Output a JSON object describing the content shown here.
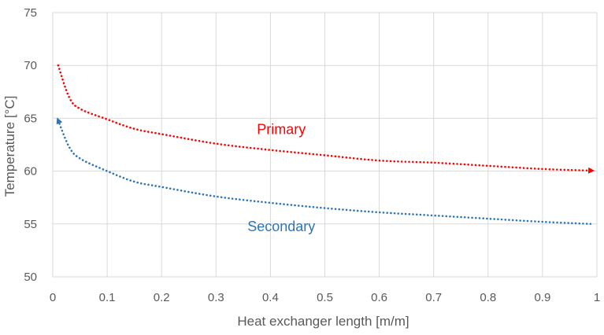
{
  "chart_data": {
    "type": "line",
    "title": "",
    "xlabel": "Heat exchanger length [m/m]",
    "ylabel": "Temperature [°C]",
    "xlim": [
      0,
      1
    ],
    "ylim": [
      50,
      75
    ],
    "grid": true,
    "x_ticks": [
      0,
      0.1,
      0.2,
      0.3,
      0.4,
      0.5,
      0.6,
      0.7,
      0.8,
      0.9,
      1
    ],
    "x_tick_labels": [
      "0",
      "0.1",
      "0.2",
      "0.3",
      "0.4",
      "0.5",
      "0.6",
      "0.7",
      "0.8",
      "0.9",
      "1"
    ],
    "y_ticks": [
      50,
      55,
      60,
      65,
      70,
      75
    ],
    "y_tick_labels": [
      "50",
      "55",
      "60",
      "65",
      "70",
      "75"
    ],
    "series": [
      {
        "name": "Primary",
        "color": "#ff0000",
        "style": "dotted",
        "arrow": "end",
        "x": [
          0.01,
          0.03,
          0.05,
          0.1,
          0.15,
          0.2,
          0.3,
          0.4,
          0.5,
          0.6,
          0.7,
          0.8,
          0.9,
          0.99
        ],
        "y": [
          70,
          67.0,
          65.9,
          64.9,
          64.0,
          63.5,
          62.6,
          62.0,
          61.5,
          61.0,
          60.8,
          60.5,
          60.2,
          60.05
        ]
      },
      {
        "name": "Secondary",
        "color": "#2e75b6",
        "style": "dotted",
        "arrow": "start",
        "x": [
          0.01,
          0.03,
          0.05,
          0.1,
          0.15,
          0.2,
          0.3,
          0.4,
          0.5,
          0.6,
          0.7,
          0.8,
          0.9,
          0.99
        ],
        "y": [
          64.8,
          62.3,
          61.2,
          60.0,
          59.0,
          58.5,
          57.6,
          57.0,
          56.5,
          56.1,
          55.8,
          55.5,
          55.2,
          55.0
        ]
      }
    ],
    "annotations": [
      {
        "text": "Primary",
        "series": "Primary"
      },
      {
        "text": "Secondary",
        "series": "Secondary"
      }
    ]
  }
}
